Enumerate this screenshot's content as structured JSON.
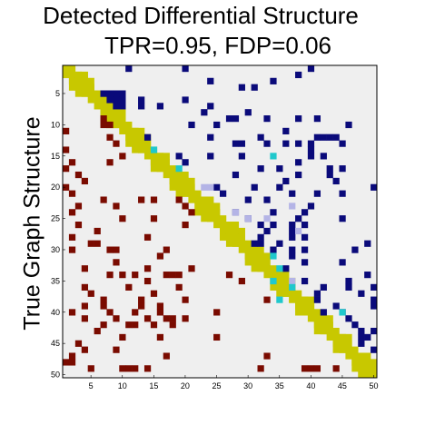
{
  "chart_data": {
    "type": "heatmap",
    "title": "Detected Differential Structure",
    "subtitle": "TPR=0.95, FDP=0.06",
    "xlabel": "",
    "ylabel": "True Graph Structure",
    "n": 50,
    "xticks": [
      5,
      10,
      15,
      20,
      25,
      30,
      35,
      40,
      45,
      50
    ],
    "yticks": [
      5,
      10,
      15,
      20,
      25,
      30,
      35,
      40,
      45,
      50
    ],
    "xlim": [
      0.5,
      50.5
    ],
    "ylim": [
      50.5,
      0.5
    ],
    "colors": {
      "background": "#efefef",
      "diagonal_block": "#c8c800",
      "true_edge": "#7a0b00",
      "detected_edge": "#0a0a7a",
      "false_positive": "#20c8cc",
      "missed_edge": "#b4b4e6"
    },
    "legend_note": "",
    "diagonal_blocks": [
      [
        2,
        5
      ],
      [
        7,
        10
      ],
      [
        11,
        14
      ],
      [
        15,
        17
      ],
      [
        18,
        21
      ],
      [
        22,
        25
      ],
      [
        26,
        29
      ],
      [
        30,
        33
      ],
      [
        34,
        37
      ],
      [
        38,
        40
      ],
      [
        41,
        43
      ],
      [
        44,
        46
      ],
      [
        47,
        50
      ]
    ],
    "true_edges": [
      [
        8,
        7
      ],
      [
        8,
        8
      ],
      [
        9,
        7
      ],
      [
        9,
        8
      ],
      [
        9,
        9
      ],
      [
        10,
        7
      ],
      [
        10,
        8
      ],
      [
        10,
        9
      ],
      [
        11,
        1
      ],
      [
        12,
        8
      ],
      [
        13,
        9
      ],
      [
        14,
        1
      ],
      [
        15,
        10
      ],
      [
        16,
        2
      ],
      [
        16,
        8
      ],
      [
        17,
        1
      ],
      [
        18,
        3
      ],
      [
        19,
        4
      ],
      [
        20,
        1
      ],
      [
        21,
        2
      ],
      [
        22,
        7
      ],
      [
        22,
        13
      ],
      [
        22,
        15
      ],
      [
        22,
        19
      ],
      [
        23,
        3
      ],
      [
        23,
        9
      ],
      [
        23,
        20
      ],
      [
        24,
        2
      ],
      [
        24,
        21
      ],
      [
        25,
        10
      ],
      [
        25,
        15
      ],
      [
        26,
        3
      ],
      [
        26,
        20
      ],
      [
        27,
        6
      ],
      [
        28,
        2
      ],
      [
        28,
        14
      ],
      [
        29,
        5
      ],
      [
        29,
        6
      ],
      [
        30,
        2
      ],
      [
        30,
        8
      ],
      [
        30,
        9
      ],
      [
        30,
        17
      ],
      [
        31,
        16
      ],
      [
        32,
        9
      ],
      [
        33,
        4
      ],
      [
        33,
        14
      ],
      [
        33,
        21
      ],
      [
        34,
        8
      ],
      [
        34,
        10
      ],
      [
        34,
        12
      ],
      [
        34,
        17
      ],
      [
        34,
        18
      ],
      [
        34,
        19
      ],
      [
        34,
        27
      ],
      [
        35,
        14
      ],
      [
        35,
        29
      ],
      [
        36,
        4
      ],
      [
        36,
        11
      ],
      [
        36,
        19
      ],
      [
        37,
        5
      ],
      [
        37,
        15
      ],
      [
        38,
        7
      ],
      [
        38,
        13
      ],
      [
        38,
        20
      ],
      [
        39,
        4
      ],
      [
        39,
        7
      ],
      [
        39,
        13
      ],
      [
        39,
        16
      ],
      [
        40,
        2
      ],
      [
        40,
        8
      ],
      [
        40,
        12
      ],
      [
        40,
        16
      ],
      [
        40,
        25
      ],
      [
        41,
        4
      ],
      [
        41,
        9
      ],
      [
        41,
        14
      ],
      [
        41,
        17
      ],
      [
        41,
        18
      ],
      [
        41,
        20
      ],
      [
        42,
        7
      ],
      [
        42,
        11
      ],
      [
        42,
        12
      ],
      [
        42,
        15
      ],
      [
        42,
        18
      ],
      [
        43,
        6
      ],
      [
        44,
        10
      ],
      [
        44,
        16
      ],
      [
        44,
        25
      ],
      [
        45,
        3
      ],
      [
        46,
        4
      ],
      [
        46,
        9
      ],
      [
        47,
        2
      ],
      [
        47,
        17
      ],
      [
        48,
        1
      ],
      [
        48,
        2
      ],
      [
        49,
        5
      ],
      [
        49,
        10
      ],
      [
        49,
        11
      ],
      [
        49,
        12
      ],
      [
        49,
        14
      ],
      [
        49,
        32
      ],
      [
        49,
        39
      ],
      [
        49,
        40
      ],
      [
        49,
        41
      ],
      [
        49,
        44
      ],
      [
        47,
        33
      ],
      [
        38,
        33
      ]
    ],
    "detected_edges": [
      [
        1,
        11
      ],
      [
        1,
        20
      ],
      [
        1,
        40
      ],
      [
        2,
        38
      ],
      [
        3,
        24
      ],
      [
        3,
        34
      ],
      [
        4,
        29
      ],
      [
        4,
        31
      ],
      [
        5,
        7
      ],
      [
        5,
        8
      ],
      [
        5,
        9
      ],
      [
        5,
        10
      ],
      [
        6,
        8
      ],
      [
        6,
        9
      ],
      [
        6,
        10
      ],
      [
        6,
        20
      ],
      [
        7,
        8
      ],
      [
        7,
        9
      ],
      [
        7,
        10
      ],
      [
        7,
        13
      ],
      [
        7,
        16
      ],
      [
        7,
        24
      ],
      [
        8,
        23
      ],
      [
        8,
        30
      ],
      [
        9,
        10
      ],
      [
        9,
        27
      ],
      [
        9,
        28
      ],
      [
        9,
        33
      ],
      [
        9,
        38
      ],
      [
        9,
        41
      ],
      [
        10,
        6
      ],
      [
        10,
        21
      ],
      [
        10,
        25
      ],
      [
        10,
        46
      ],
      [
        12,
        14
      ],
      [
        12,
        24
      ],
      [
        12,
        32
      ],
      [
        12,
        41
      ],
      [
        12,
        42
      ],
      [
        12,
        43
      ],
      [
        12,
        44
      ],
      [
        13,
        28
      ],
      [
        13,
        29
      ],
      [
        13,
        33
      ],
      [
        13,
        36
      ],
      [
        13,
        38
      ],
      [
        13,
        40
      ],
      [
        13,
        45
      ],
      [
        14,
        8
      ],
      [
        14,
        40
      ],
      [
        15,
        19
      ],
      [
        15,
        24
      ],
      [
        15,
        29
      ],
      [
        15,
        40
      ],
      [
        15,
        42
      ],
      [
        16,
        20
      ],
      [
        16,
        38
      ],
      [
        17,
        32
      ],
      [
        17,
        35
      ],
      [
        17,
        43
      ],
      [
        17,
        45
      ],
      [
        18,
        28
      ],
      [
        18,
        38
      ],
      [
        18,
        43
      ],
      [
        19,
        36
      ],
      [
        19,
        44
      ],
      [
        20,
        25
      ],
      [
        20,
        31
      ],
      [
        20,
        35
      ],
      [
        20,
        50
      ],
      [
        21,
        26
      ],
      [
        21,
        37
      ],
      [
        21,
        41
      ],
      [
        21,
        45
      ],
      [
        22,
        30
      ],
      [
        22,
        33
      ],
      [
        23,
        40
      ],
      [
        24,
        28
      ],
      [
        24,
        34
      ],
      [
        24,
        39
      ],
      [
        25,
        30
      ],
      [
        25,
        38
      ],
      [
        25,
        45
      ],
      [
        26,
        32
      ],
      [
        26,
        34
      ],
      [
        26,
        39
      ],
      [
        27,
        33
      ],
      [
        28,
        32
      ],
      [
        28,
        37
      ],
      [
        28,
        39
      ],
      [
        29,
        31
      ],
      [
        29,
        32
      ],
      [
        29,
        49
      ],
      [
        30,
        37
      ],
      [
        30,
        39
      ],
      [
        30,
        47
      ],
      [
        31,
        37
      ],
      [
        32,
        39
      ],
      [
        32,
        45
      ],
      [
        34,
        49
      ],
      [
        35,
        46
      ],
      [
        36,
        42
      ],
      [
        36,
        46
      ],
      [
        36,
        50
      ],
      [
        37,
        41
      ],
      [
        37,
        48
      ],
      [
        38,
        50
      ],
      [
        39,
        50
      ],
      [
        40,
        45
      ],
      [
        41,
        46
      ],
      [
        43,
        48
      ],
      [
        44,
        48
      ],
      [
        44,
        49
      ],
      [
        45,
        48
      ],
      [
        46,
        50
      ],
      [
        27,
        37
      ],
      [
        33,
        36
      ],
      [
        35,
        39
      ],
      [
        39,
        44
      ],
      [
        42,
        47
      ],
      [
        43,
        50
      ],
      [
        38,
        41
      ],
      [
        40,
        42
      ],
      [
        6,
        13
      ],
      [
        11,
        36
      ],
      [
        26,
        37
      ],
      [
        29,
        35
      ],
      [
        30,
        34
      ]
    ],
    "false_positives": [
      [
        14,
        15
      ],
      [
        17,
        19
      ],
      [
        15,
        34
      ],
      [
        31,
        34
      ],
      [
        33,
        35
      ],
      [
        36,
        37
      ],
      [
        38,
        35
      ],
      [
        40,
        45
      ],
      [
        35,
        34
      ]
    ],
    "missed_edges": [
      [
        20,
        23
      ],
      [
        20,
        24
      ],
      [
        24,
        28
      ],
      [
        25,
        30
      ],
      [
        25,
        33
      ],
      [
        27,
        38
      ],
      [
        35,
        37
      ],
      [
        23,
        37
      ]
    ]
  }
}
